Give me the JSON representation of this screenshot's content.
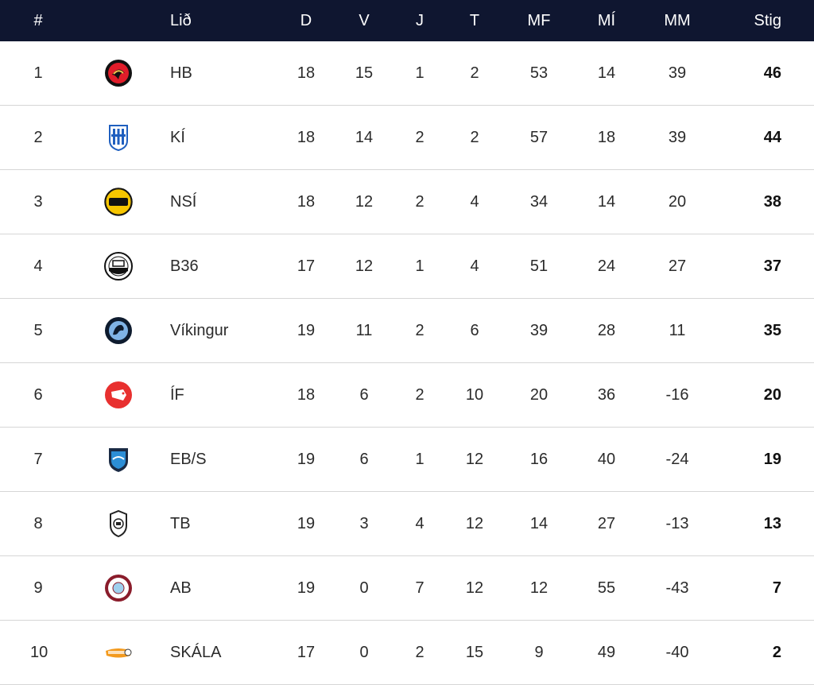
{
  "header": {
    "pos": "#",
    "team": "Lið",
    "played": "D",
    "won": "V",
    "drawn": "J",
    "lost": "T",
    "goals_for": "MF",
    "goals_against": "MÍ",
    "goal_diff": "MM",
    "points": "Stig"
  },
  "rows": [
    {
      "pos": "1",
      "team": "HB",
      "d": "18",
      "v": "15",
      "j": "1",
      "t": "2",
      "mf": "53",
      "mi": "14",
      "mm": "39",
      "stig": "46",
      "logo": "hb-crest-icon"
    },
    {
      "pos": "2",
      "team": "KÍ",
      "d": "18",
      "v": "14",
      "j": "2",
      "t": "2",
      "mf": "57",
      "mi": "18",
      "mm": "39",
      "stig": "44",
      "logo": "ki-crest-icon"
    },
    {
      "pos": "3",
      "team": "NSÍ",
      "d": "18",
      "v": "12",
      "j": "2",
      "t": "4",
      "mf": "34",
      "mi": "14",
      "mm": "20",
      "stig": "38",
      "logo": "nsi-crest-icon"
    },
    {
      "pos": "4",
      "team": "B36",
      "d": "17",
      "v": "12",
      "j": "1",
      "t": "4",
      "mf": "51",
      "mi": "24",
      "mm": "27",
      "stig": "37",
      "logo": "b36-crest-icon"
    },
    {
      "pos": "5",
      "team": "Víkingur",
      "d": "19",
      "v": "11",
      "j": "2",
      "t": "6",
      "mf": "39",
      "mi": "28",
      "mm": "11",
      "stig": "35",
      "logo": "vikingur-crest-icon"
    },
    {
      "pos": "6",
      "team": "ÍF",
      "d": "18",
      "v": "6",
      "j": "2",
      "t": "10",
      "mf": "20",
      "mi": "36",
      "mm": "-16",
      "stig": "20",
      "logo": "if-crest-icon"
    },
    {
      "pos": "7",
      "team": "EB/S",
      "d": "19",
      "v": "6",
      "j": "1",
      "t": "12",
      "mf": "16",
      "mi": "40",
      "mm": "-24",
      "stig": "19",
      "logo": "ebs-crest-icon"
    },
    {
      "pos": "8",
      "team": "TB",
      "d": "19",
      "v": "3",
      "j": "4",
      "t": "12",
      "mf": "14",
      "mi": "27",
      "mm": "-13",
      "stig": "13",
      "logo": "tb-crest-icon"
    },
    {
      "pos": "9",
      "team": "AB",
      "d": "19",
      "v": "0",
      "j": "7",
      "t": "12",
      "mf": "12",
      "mi": "55",
      "mm": "-43",
      "stig": "7",
      "logo": "ab-crest-icon"
    },
    {
      "pos": "10",
      "team": "SKÁLA",
      "d": "17",
      "v": "0",
      "j": "2",
      "t": "15",
      "mf": "9",
      "mi": "49",
      "mm": "-40",
      "stig": "2",
      "logo": "skala-crest-icon"
    }
  ],
  "colors": {
    "header_bg": "#0f1630",
    "header_text": "#ffffff",
    "row_divider": "#d6d6d6",
    "text": "#2b2b2b"
  }
}
